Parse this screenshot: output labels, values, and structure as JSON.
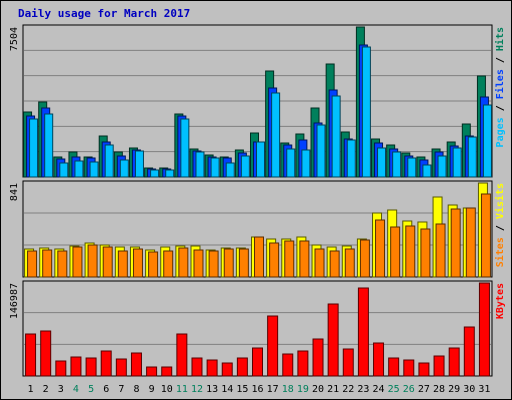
{
  "chart_data": {
    "title": "Daily usage for March 2017",
    "days": [
      "1",
      "2",
      "3",
      "4",
      "5",
      "6",
      "7",
      "8",
      "9",
      "10",
      "11",
      "12",
      "13",
      "14",
      "15",
      "16",
      "17",
      "18",
      "19",
      "20",
      "21",
      "22",
      "23",
      "24",
      "25",
      "26",
      "27",
      "28",
      "29",
      "30",
      "31"
    ],
    "weekend_days": [
      "4",
      "5",
      "11",
      "12",
      "18",
      "19",
      "25",
      "26"
    ],
    "panels": [
      {
        "type": "bar",
        "max_label": "7504",
        "ymax": 7504,
        "legend": [
          {
            "text": "Pages",
            "color": "#00c0ff"
          },
          {
            "text": " / ",
            "color": "#000000"
          },
          {
            "text": "Files",
            "color": "#0040ff"
          },
          {
            "text": " / ",
            "color": "#000000"
          },
          {
            "text": "Hits",
            "color": "#00805c"
          }
        ],
        "series": [
          {
            "name": "Hits",
            "color": "#00805c",
            "values": [
              3250,
              3750,
              1000,
              1250,
              1000,
              2050,
              1250,
              1450,
              450,
              450,
              3150,
              1400,
              1100,
              1000,
              1350,
              2200,
              5300,
              1700,
              2150,
              3450,
              5650,
              2250,
              7500,
              1900,
              1600,
              1200,
              1000,
              1400,
              1750,
              2650,
              5050
            ]
          },
          {
            "name": "Files",
            "color": "#0040ff",
            "values": [
              3050,
              3450,
              900,
              1000,
              950,
              1750,
              1050,
              1350,
              400,
              400,
              3050,
              1300,
              1000,
              950,
              1200,
              1750,
              4450,
              1600,
              1850,
              2700,
              4350,
              1900,
              6600,
              1700,
              1400,
              1050,
              850,
              1250,
              1550,
              2050,
              4000
            ]
          },
          {
            "name": "Pages",
            "color": "#00c0ff",
            "values": [
              2900,
              3150,
              700,
              800,
              750,
              1600,
              850,
              1300,
              350,
              350,
              2900,
              1250,
              950,
              700,
              1050,
              1750,
              4200,
              1400,
              1350,
              2600,
              4050,
              1850,
              6500,
              1450,
              1250,
              950,
              600,
              1050,
              1450,
              2000,
              3600
            ]
          }
        ]
      },
      {
        "type": "bar",
        "max_label": "841",
        "ymax": 841,
        "legend": [
          {
            "text": "Sites",
            "color": "#ff8000"
          },
          {
            "text": " / ",
            "color": "#000000"
          },
          {
            "text": "Visits",
            "color": "#ffff00"
          }
        ],
        "series": [
          {
            "name": "Visits",
            "color": "#ffff00",
            "values": [
              250,
              260,
              250,
              280,
              300,
              290,
              270,
              270,
              240,
              270,
              280,
              280,
              240,
              260,
              260,
              360,
              340,
              340,
              360,
              290,
              270,
              280,
              340,
              570,
              600,
              500,
              490,
              720,
              640,
              620,
              840
            ]
          },
          {
            "name": "Sites",
            "color": "#ff8000",
            "values": [
              230,
              240,
              230,
              270,
              290,
              270,
              230,
              250,
              220,
              230,
              260,
              240,
              230,
              250,
              250,
              360,
              300,
              320,
              320,
              250,
              230,
              250,
              330,
              510,
              450,
              460,
              430,
              470,
              610,
              620,
              740
            ]
          }
        ]
      },
      {
        "type": "bar",
        "max_label": "146987",
        "ymax": 146987,
        "legend": [
          {
            "text": "KBytes",
            "color": "#ff0000"
          }
        ],
        "series": [
          {
            "name": "KBytes",
            "color": "#ff0000",
            "values": [
              67000,
              71000,
              24000,
              30000,
              29000,
              40000,
              27000,
              37000,
              14000,
              15000,
              67000,
              29000,
              26000,
              20000,
              28000,
              45000,
              95000,
              35000,
              40000,
              59000,
              114000,
              43000,
              139000,
              52000,
              29000,
              25000,
              20000,
              32000,
              44000,
              77000,
              147000
            ]
          }
        ]
      }
    ]
  }
}
